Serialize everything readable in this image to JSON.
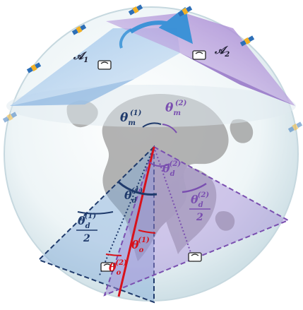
{
  "labels": {
    "area1": "𝒜",
    "area1_sub": "1",
    "area2": "𝒜",
    "area2_sub": "2",
    "theta": "θ",
    "m1_sub": "m",
    "m1_sup": "(1)",
    "m2_sub": "m",
    "m2_sup": "(2)",
    "d1_sub": "d",
    "d1_sup": "(1)",
    "d2_sub": "d",
    "d2_sup": "(2)",
    "d1_half_sub": "d",
    "d1_half_sup": "(1)",
    "d1_half_den": "2",
    "d2_half_sub": "d",
    "d2_half_sup": "(2)",
    "d2_half_den": "2",
    "o1_sub": "o",
    "o1_sup": "(1)",
    "o2_sub": "o",
    "o2_sup": "(2)"
  },
  "colors": {
    "sphere_edge": "#c9dbe2",
    "sphere_fill": "#e9f2f4",
    "cap_blue": "#9fc1e3",
    "cap_purple": "#b79bd8",
    "cone_blue": "#7fa9d6",
    "cone_purple": "#a58ad6",
    "navy": "#1f3a6b",
    "purple": "#7a4fb0",
    "red": "#d8121b",
    "land": "#8f8f8f"
  },
  "icons": [
    "satellite-icon",
    "terminal-icon"
  ]
}
